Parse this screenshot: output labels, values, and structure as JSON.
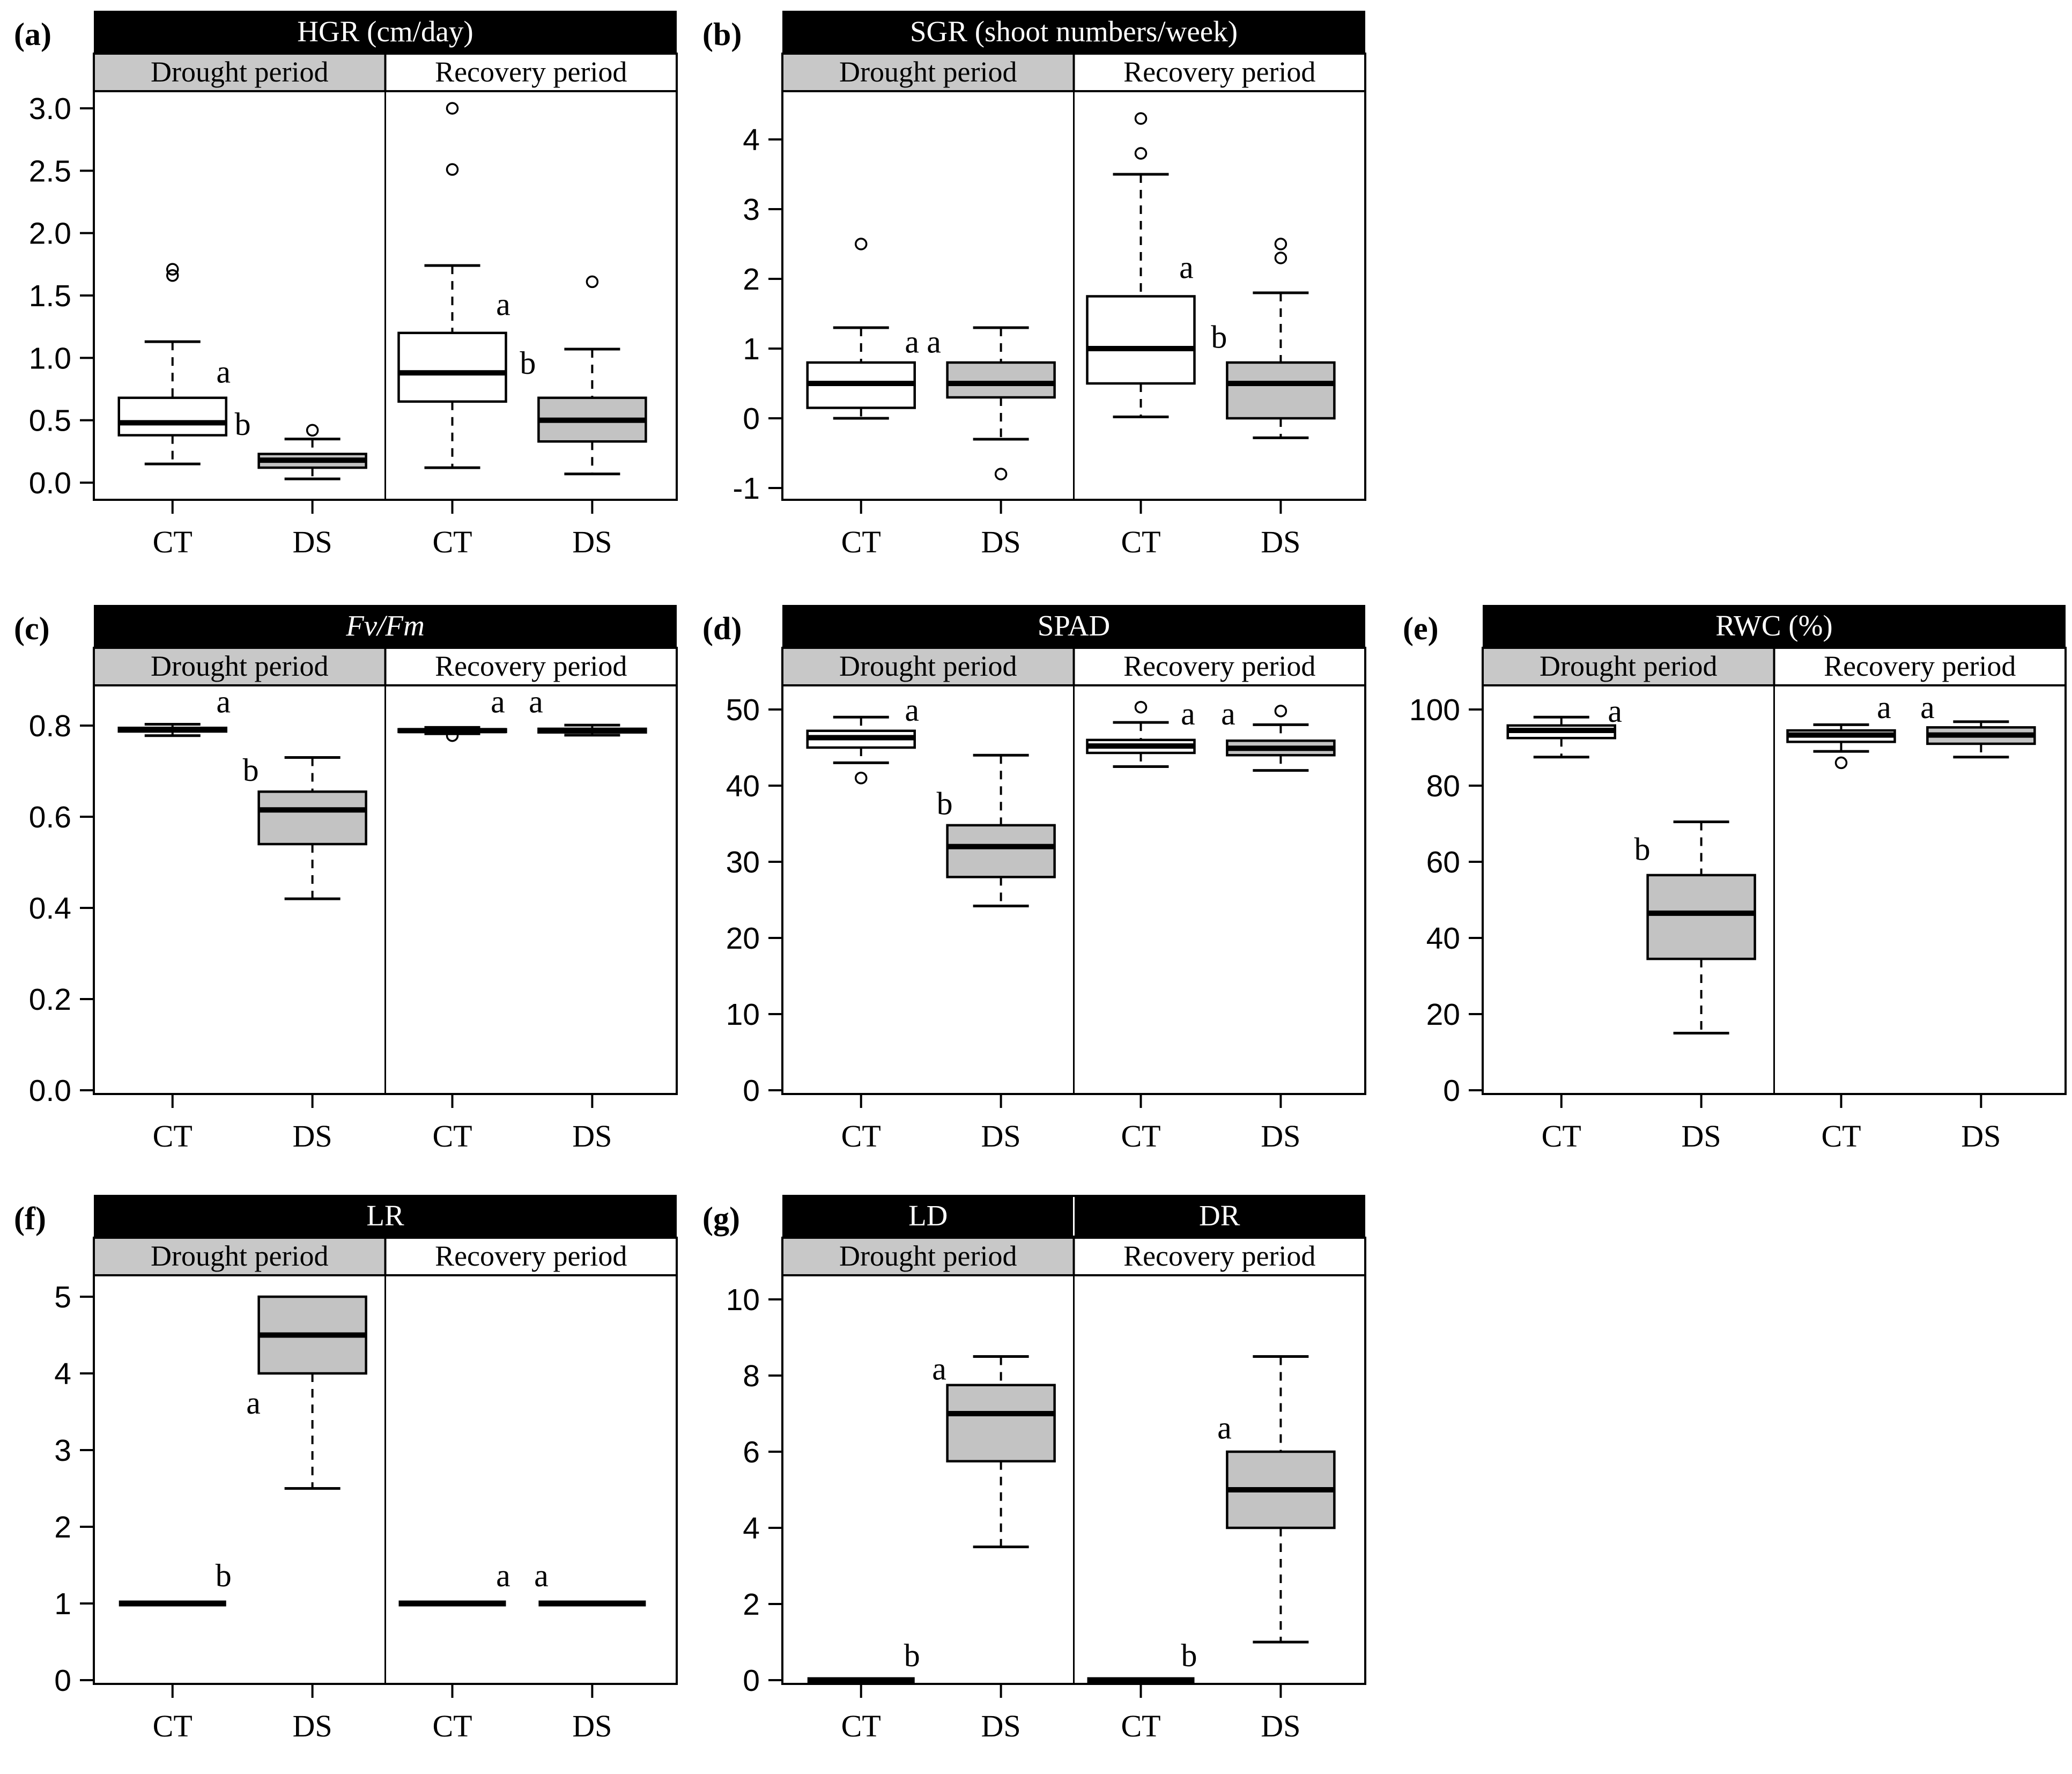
{
  "figure": {
    "background": "#ffffff",
    "line_color": "#000000",
    "title_bar_bg": "#000000",
    "title_text_color": "#ffffff",
    "drought_header_bg": "#c8c8c8",
    "recovery_header_bg": "#ffffff",
    "ct_box_fill": "#ffffff",
    "ds_box_fill": "#c3c3c3",
    "period_labels": [
      "Drought period",
      "Recovery period"
    ],
    "treatment_labels": [
      "CT",
      "DS"
    ]
  },
  "chart_data": [
    {
      "id": "a",
      "row": 0,
      "col": 0,
      "panel_label": "(a)",
      "type": "boxplot",
      "titles": [
        "HGR (cm/day)"
      ],
      "title_italic": false,
      "headers": [
        "Drought period",
        "Recovery period"
      ],
      "ylim": [
        0.0,
        3.0
      ],
      "yticks": [
        0.0,
        0.5,
        1.0,
        1.5,
        2.0,
        2.5,
        3.0
      ],
      "ytick_labels": [
        "0.0",
        "0.5",
        "1.0",
        "1.5",
        "2.0",
        "2.5",
        "3.0"
      ],
      "x_labels": [
        "CT",
        "DS",
        "CT",
        "DS"
      ],
      "groups": [
        {
          "period": "Drought",
          "treatment": "CT",
          "fill": "ct",
          "flat": false,
          "whisker_low": 0.15,
          "q1": 0.38,
          "median": 0.48,
          "q3": 0.68,
          "whisker_high": 1.13,
          "outliers": [
            1.66,
            1.71
          ],
          "sig": "a",
          "sig_dx": 95,
          "sig_y": 0.88
        },
        {
          "period": "Drought",
          "treatment": "DS",
          "fill": "ds",
          "flat": false,
          "whisker_low": 0.03,
          "q1": 0.12,
          "median": 0.18,
          "q3": 0.23,
          "whisker_high": 0.35,
          "outliers": [
            0.42
          ],
          "sig": "b",
          "sig_dx": -130,
          "sig_y": 0.46
        },
        {
          "period": "Recovery",
          "treatment": "CT",
          "fill": "ct",
          "flat": false,
          "whisker_low": 0.12,
          "q1": 0.65,
          "median": 0.88,
          "q3": 1.2,
          "whisker_high": 1.74,
          "outliers": [
            2.51,
            3.0
          ],
          "sig": "a",
          "sig_dx": 95,
          "sig_y": 1.42
        },
        {
          "period": "Recovery",
          "treatment": "DS",
          "fill": "ds",
          "flat": false,
          "whisker_low": 0.07,
          "q1": 0.33,
          "median": 0.5,
          "q3": 0.68,
          "whisker_high": 1.07,
          "outliers": [
            1.61
          ],
          "sig": "b",
          "sig_dx": -120,
          "sig_y": 0.95
        }
      ]
    },
    {
      "id": "b",
      "row": 0,
      "col": 1,
      "panel_label": "(b)",
      "type": "boxplot",
      "titles": [
        "SGR (shoot numbers/week)"
      ],
      "title_italic": false,
      "headers": [
        "Drought period",
        "Recovery period"
      ],
      "ylim": [
        -1,
        4
      ],
      "yticks": [
        -1,
        0,
        1,
        2,
        3,
        4
      ],
      "ytick_labels": [
        "-1",
        "0",
        "1",
        "2",
        "3",
        "4"
      ],
      "x_labels": [
        "CT",
        "DS",
        "CT",
        "DS"
      ],
      "groups": [
        {
          "period": "Drought",
          "treatment": "CT",
          "fill": "ct",
          "flat": false,
          "whisker_low": 0.0,
          "q1": 0.15,
          "median": 0.5,
          "q3": 0.8,
          "whisker_high": 1.3,
          "outliers": [
            2.5
          ],
          "sig": "a",
          "sig_dx": 95,
          "sig_y": 1.08
        },
        {
          "period": "Drought",
          "treatment": "DS",
          "fill": "ds",
          "flat": false,
          "whisker_low": -0.3,
          "q1": 0.3,
          "median": 0.5,
          "q3": 0.8,
          "whisker_high": 1.3,
          "outliers": [
            -0.8
          ],
          "sig": "a",
          "sig_dx": -125,
          "sig_y": 1.08
        },
        {
          "period": "Recovery",
          "treatment": "CT",
          "fill": "ct",
          "flat": false,
          "whisker_low": 0.02,
          "q1": 0.5,
          "median": 1.0,
          "q3": 1.75,
          "whisker_high": 3.5,
          "outliers": [
            3.8,
            4.3
          ],
          "sig": "a",
          "sig_dx": 85,
          "sig_y": 2.15
        },
        {
          "period": "Recovery",
          "treatment": "DS",
          "fill": "ds",
          "flat": false,
          "whisker_low": -0.28,
          "q1": 0.0,
          "median": 0.5,
          "q3": 0.8,
          "whisker_high": 1.8,
          "outliers": [
            2.3,
            2.5
          ],
          "sig": "b",
          "sig_dx": -115,
          "sig_y": 1.15
        }
      ]
    },
    {
      "id": "c",
      "row": 1,
      "col": 0,
      "panel_label": "(c)",
      "type": "boxplot",
      "titles": [
        "Fv/Fm"
      ],
      "title_italic": true,
      "headers": [
        "Drought period",
        "Recovery period"
      ],
      "ylim": [
        0.0,
        0.8
      ],
      "yticks": [
        0.0,
        0.2,
        0.4,
        0.6,
        0.8
      ],
      "ytick_labels": [
        "0.0",
        "0.2",
        "0.4",
        "0.6",
        "0.8"
      ],
      "x_labels": [
        "CT",
        "DS",
        "CT",
        "DS"
      ],
      "groups": [
        {
          "period": "Drought",
          "treatment": "CT",
          "fill": "ct",
          "flat": false,
          "whisker_low": 0.778,
          "q1": 0.787,
          "median": 0.791,
          "q3": 0.795,
          "whisker_high": 0.803,
          "outliers": [],
          "sig": "a",
          "sig_dx": 95,
          "sig_y": 0.85
        },
        {
          "period": "Drought",
          "treatment": "DS",
          "fill": "ds",
          "flat": false,
          "whisker_low": 0.42,
          "q1": 0.54,
          "median": 0.615,
          "q3": 0.655,
          "whisker_high": 0.73,
          "outliers": [],
          "sig": "b",
          "sig_dx": -115,
          "sig_y": 0.7
        },
        {
          "period": "Recovery",
          "treatment": "CT",
          "fill": "ct",
          "flat": false,
          "whisker_low": 0.782,
          "q1": 0.786,
          "median": 0.789,
          "q3": 0.792,
          "whisker_high": 0.796,
          "outliers": [
            0.778
          ],
          "sig": "a",
          "sig_dx": 85,
          "sig_y": 0.85
        },
        {
          "period": "Recovery",
          "treatment": "DS",
          "fill": "ds",
          "flat": false,
          "whisker_low": 0.779,
          "q1": 0.785,
          "median": 0.789,
          "q3": 0.793,
          "whisker_high": 0.801,
          "outliers": [],
          "sig": "a",
          "sig_dx": -105,
          "sig_y": 0.85
        }
      ]
    },
    {
      "id": "d",
      "row": 1,
      "col": 1,
      "panel_label": "(d)",
      "type": "boxplot",
      "titles": [
        "SPAD"
      ],
      "title_italic": false,
      "headers": [
        "Drought period",
        "Recovery period"
      ],
      "ylim": [
        0,
        50
      ],
      "yticks": [
        0,
        10,
        20,
        30,
        40,
        50
      ],
      "ytick_labels": [
        "0",
        "10",
        "20",
        "30",
        "40",
        "50"
      ],
      "x_labels": [
        "CT",
        "DS",
        "CT",
        "DS"
      ],
      "groups": [
        {
          "period": "Drought",
          "treatment": "CT",
          "fill": "ct",
          "flat": false,
          "whisker_low": 43,
          "q1": 45,
          "median": 46.3,
          "q3": 47.2,
          "whisker_high": 49,
          "outliers": [
            41
          ],
          "sig": "a",
          "sig_dx": 95,
          "sig_y": 49.8
        },
        {
          "period": "Drought",
          "treatment": "DS",
          "fill": "ds",
          "flat": false,
          "whisker_low": 24.2,
          "q1": 28,
          "median": 32,
          "q3": 34.8,
          "whisker_high": 44,
          "outliers": [],
          "sig": "b",
          "sig_dx": -105,
          "sig_y": 37.5
        },
        {
          "period": "Recovery",
          "treatment": "CT",
          "fill": "ct",
          "flat": false,
          "whisker_low": 42.5,
          "q1": 44.3,
          "median": 45.2,
          "q3": 46,
          "whisker_high": 48.3,
          "outliers": [
            50.3
          ],
          "sig": "a",
          "sig_dx": 88,
          "sig_y": 49.3
        },
        {
          "period": "Recovery",
          "treatment": "DS",
          "fill": "ds",
          "flat": false,
          "whisker_low": 42,
          "q1": 44,
          "median": 44.9,
          "q3": 45.9,
          "whisker_high": 48,
          "outliers": [
            49.8
          ],
          "sig": "a",
          "sig_dx": -98,
          "sig_y": 49.3
        }
      ]
    },
    {
      "id": "e",
      "row": 1,
      "col": 2,
      "panel_label": "(e)",
      "type": "boxplot",
      "titles": [
        "RWC (%)"
      ],
      "title_italic": false,
      "headers": [
        "Drought period",
        "Recovery period"
      ],
      "ylim": [
        0,
        100
      ],
      "yticks": [
        0,
        20,
        40,
        60,
        80,
        100
      ],
      "ytick_labels": [
        "0",
        "20",
        "40",
        "60",
        "80",
        "100"
      ],
      "x_labels": [
        "CT",
        "DS",
        "CT",
        "DS"
      ],
      "groups": [
        {
          "period": "Drought",
          "treatment": "CT",
          "fill": "ct",
          "flat": false,
          "whisker_low": 87.5,
          "q1": 92.5,
          "median": 94.5,
          "q3": 95.8,
          "whisker_high": 98,
          "outliers": [],
          "sig": "a",
          "sig_dx": 100,
          "sig_y": 99.3
        },
        {
          "period": "Drought",
          "treatment": "DS",
          "fill": "ds",
          "flat": false,
          "whisker_low": 15,
          "q1": 34.5,
          "median": 46.5,
          "q3": 56.5,
          "whisker_high": 70.5,
          "outliers": [],
          "sig": "b",
          "sig_dx": -110,
          "sig_y": 63
        },
        {
          "period": "Recovery",
          "treatment": "CT",
          "fill": "ct",
          "flat": false,
          "whisker_low": 89,
          "q1": 91.5,
          "median": 93.3,
          "q3": 94.5,
          "whisker_high": 96,
          "outliers": [
            86
          ],
          "sig": "a",
          "sig_dx": 80,
          "sig_y": 100.3
        },
        {
          "period": "Recovery",
          "treatment": "DS",
          "fill": "ds",
          "flat": false,
          "whisker_low": 87.5,
          "q1": 91,
          "median": 93.3,
          "q3": 95.3,
          "whisker_high": 96.8,
          "outliers": [],
          "sig": "a",
          "sig_dx": -100,
          "sig_y": 100.3
        }
      ]
    },
    {
      "id": "f",
      "row": 2,
      "col": 0,
      "panel_label": "(f)",
      "type": "boxplot",
      "titles": [
        "LR"
      ],
      "title_italic": false,
      "headers": [
        "Drought period",
        "Recovery period"
      ],
      "ylim": [
        0,
        5
      ],
      "yticks": [
        0,
        1,
        2,
        3,
        4,
        5
      ],
      "ytick_labels": [
        "0",
        "1",
        "2",
        "3",
        "4",
        "5"
      ],
      "x_labels": [
        "CT",
        "DS",
        "CT",
        "DS"
      ],
      "groups": [
        {
          "period": "Drought",
          "treatment": "CT",
          "fill": "ct",
          "flat": true,
          "value": 1,
          "outliers": [],
          "sig": "b",
          "sig_dx": 95,
          "sig_y": 1.35
        },
        {
          "period": "Drought",
          "treatment": "DS",
          "fill": "ds",
          "flat": false,
          "whisker_low": 2.5,
          "q1": 4,
          "median": 4.5,
          "q3": 5,
          "whisker_high": 5,
          "outliers": [],
          "sig": "a",
          "sig_dx": -110,
          "sig_y": 3.6
        },
        {
          "period": "Recovery",
          "treatment": "CT",
          "fill": "ct",
          "flat": true,
          "value": 1,
          "outliers": [],
          "sig": "a",
          "sig_dx": 95,
          "sig_y": 1.35
        },
        {
          "period": "Recovery",
          "treatment": "DS",
          "fill": "ds",
          "flat": true,
          "value": 1,
          "outliers": [],
          "sig": "a",
          "sig_dx": -95,
          "sig_y": 1.35
        }
      ]
    },
    {
      "id": "g",
      "row": 2,
      "col": 1,
      "panel_label": "(g)",
      "type": "boxplot",
      "titles": [
        "LD",
        "DR"
      ],
      "title_italic": false,
      "headers": [
        "Drought period",
        "Recovery period"
      ],
      "ylim": [
        0,
        10
      ],
      "yticks": [
        0,
        2,
        4,
        6,
        8,
        10
      ],
      "ytick_labels": [
        "0",
        "2",
        "4",
        "6",
        "8",
        "10"
      ],
      "x_labels": [
        "CT",
        "DS",
        "CT",
        "DS"
      ],
      "groups": [
        {
          "period": "Drought",
          "treatment": "CT",
          "fill": "ct",
          "flat": true,
          "value": 0,
          "outliers": [],
          "sig": "b",
          "sig_dx": 95,
          "sig_y": 0.62
        },
        {
          "period": "Drought",
          "treatment": "DS",
          "fill": "ds",
          "flat": false,
          "whisker_low": 3.5,
          "q1": 5.75,
          "median": 7,
          "q3": 7.75,
          "whisker_high": 8.5,
          "outliers": [],
          "sig": "a",
          "sig_dx": -115,
          "sig_y": 8.15
        },
        {
          "period": "Recovery",
          "treatment": "CT",
          "fill": "ct",
          "flat": true,
          "value": 0,
          "outliers": [],
          "sig": "b",
          "sig_dx": 90,
          "sig_y": 0.62
        },
        {
          "period": "Recovery",
          "treatment": "DS",
          "fill": "ds",
          "flat": false,
          "whisker_low": 1,
          "q1": 4,
          "median": 5,
          "q3": 6,
          "whisker_high": 8.5,
          "outliers": [],
          "sig": "a",
          "sig_dx": -105,
          "sig_y": 6.6
        }
      ]
    }
  ]
}
